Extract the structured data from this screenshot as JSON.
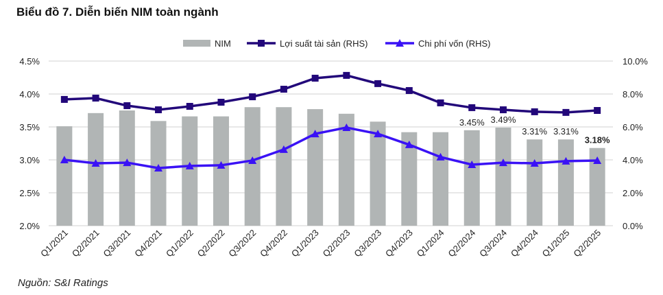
{
  "chart_data": {
    "type": "bar+line",
    "title": "Biểu đồ 7. Diễn biến NIM toàn ngành",
    "source": "Nguồn: S&I Ratings",
    "categories": [
      "Q1/2021",
      "Q2/2021",
      "Q3/2021",
      "Q4/2021",
      "Q1/2022",
      "Q2/2022",
      "Q3/2022",
      "Q4/2022",
      "Q1/2023",
      "Q2/2023",
      "Q3/2023",
      "Q4/2023",
      "Q1/2024",
      "Q2/2024",
      "Q3/2024",
      "Q4/2024",
      "Q1/2025",
      "Q2/2025"
    ],
    "left_axis": {
      "ylim": [
        2.0,
        4.5
      ],
      "ticks": [
        "2.0%",
        "2.5%",
        "3.0%",
        "3.5%",
        "4.0%",
        "4.5%"
      ]
    },
    "right_axis": {
      "ylim": [
        0,
        10
      ],
      "ticks": [
        "0.0%",
        "2.0%",
        "4.0%",
        "6.0%",
        "8.0%",
        "10.0%"
      ]
    },
    "grid": true,
    "legend_position": "top",
    "series": [
      {
        "name": "NIM",
        "kind": "bar",
        "axis": "left",
        "color": "#b1b5b5",
        "values": [
          3.51,
          3.71,
          3.75,
          3.59,
          3.66,
          3.66,
          3.8,
          3.8,
          3.77,
          3.7,
          3.58,
          3.42,
          3.42,
          3.45,
          3.49,
          3.31,
          3.31,
          3.18
        ],
        "data_labels": {
          "13": "3.45%",
          "14": "3.49%",
          "15": "3.31%",
          "16": "3.31%",
          "17": "3.18%"
        }
      },
      {
        "name": "Lợi suất tài sản (RHS)",
        "kind": "line",
        "marker": "square",
        "axis": "right",
        "color": "#22077a",
        "values": [
          7.67,
          7.75,
          7.29,
          7.04,
          7.25,
          7.5,
          7.83,
          8.29,
          8.96,
          9.13,
          8.63,
          8.21,
          7.46,
          7.17,
          7.04,
          6.92,
          6.88,
          7.0
        ]
      },
      {
        "name": "Chi phí vốn (RHS)",
        "kind": "line",
        "marker": "triangle",
        "axis": "right",
        "color": "#3a12f5",
        "values": [
          4.0,
          3.79,
          3.83,
          3.5,
          3.63,
          3.67,
          3.96,
          4.63,
          5.58,
          5.96,
          5.58,
          4.92,
          4.17,
          3.71,
          3.83,
          3.79,
          3.92,
          3.96
        ]
      }
    ]
  }
}
